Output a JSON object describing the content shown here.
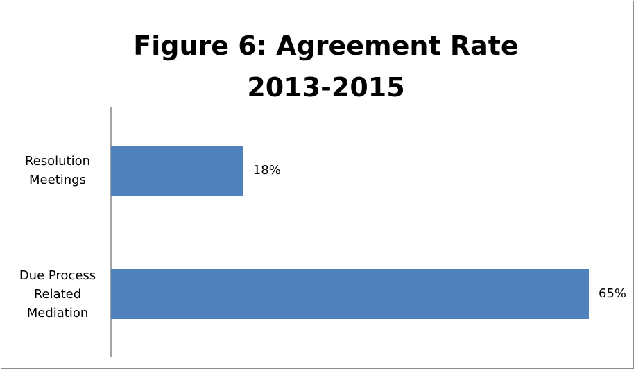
{
  "chart_data": {
    "type": "bar",
    "orientation": "horizontal",
    "title": "Figure 6: Agreement Rate\n2013-2015",
    "categories": [
      "Resolution Meetings",
      "Due Process Related Mediation"
    ],
    "values": [
      18,
      65
    ],
    "value_labels": [
      "18%",
      "65%"
    ],
    "color": "#4f81bd",
    "xlim": [
      0,
      70
    ]
  }
}
